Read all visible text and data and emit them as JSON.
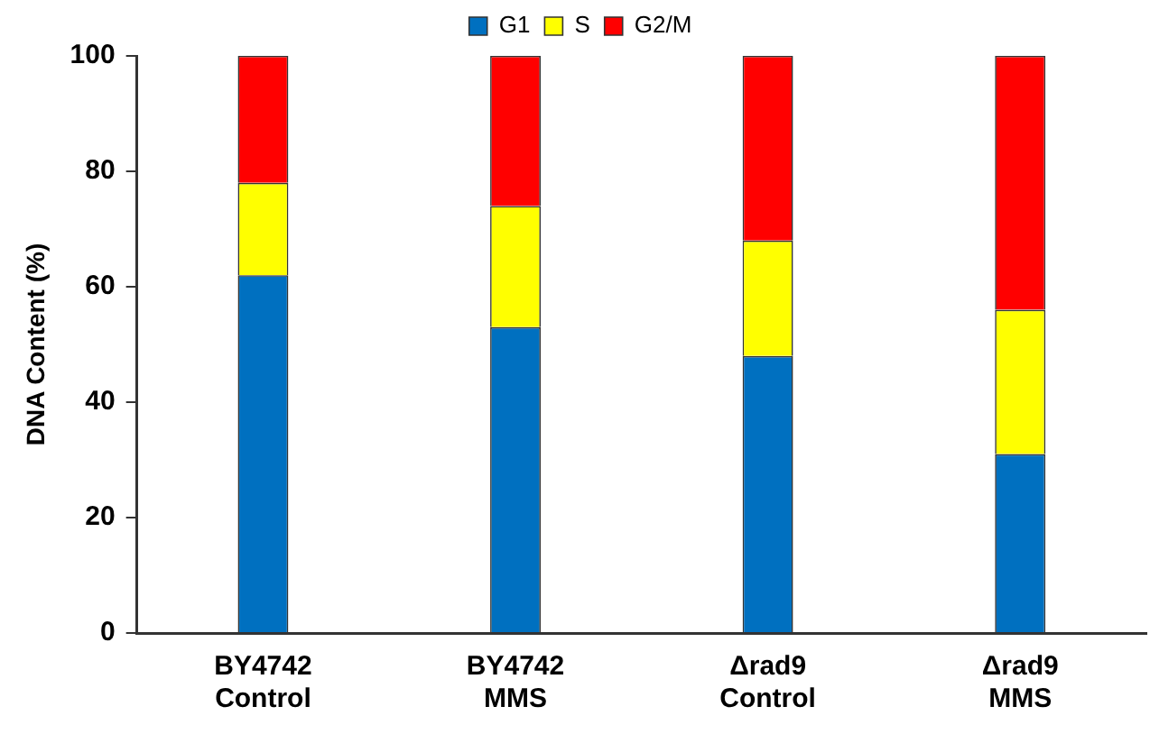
{
  "chart_data": {
    "type": "bar",
    "stacked": true,
    "ylabel": "DNA Content (%)",
    "categories": [
      "BY4742 Control",
      "BY4742 MMS",
      "Δrad9 Control",
      "Δrad9 MMS"
    ],
    "series": [
      {
        "name": "G1",
        "color": "#0070c0",
        "values": [
          62,
          53,
          48,
          31
        ]
      },
      {
        "name": "S",
        "color": "#ffff00",
        "values": [
          16,
          21,
          20,
          25
        ]
      },
      {
        "name": "G2/M",
        "color": "#ff0000",
        "values": [
          22,
          26,
          32,
          44
        ]
      }
    ],
    "ylim": [
      0,
      100
    ],
    "yticks": [
      0,
      20,
      40,
      60,
      80,
      100
    ],
    "grid": false,
    "legend": "top"
  }
}
